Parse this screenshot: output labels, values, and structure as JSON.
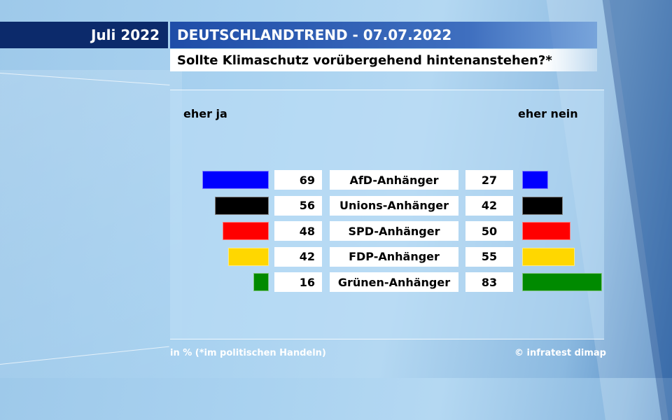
{
  "header": {
    "date": "Juli 2022",
    "title": "DEUTSCHLANDTREND - 07.07.2022",
    "subtitle": "Sollte Klimaschutz vorübergehend hintenanstehen?*"
  },
  "chart_data": {
    "type": "bar",
    "title": "Sollte Klimaschutz vorübergehend hintenanstehen?*",
    "left_label": "eher ja",
    "right_label": "eher nein",
    "unit": "%",
    "categories": [
      "AfD-Anhänger",
      "Unions-Anhänger",
      "SPD-Anhänger",
      "FDP-Anhänger",
      "Grünen-Anhänger"
    ],
    "series": [
      {
        "name": "eher ja",
        "values": [
          69,
          56,
          48,
          42,
          16
        ]
      },
      {
        "name": "eher nein",
        "values": [
          27,
          42,
          50,
          55,
          83
        ]
      }
    ],
    "colors": [
      "#0000ff",
      "#000000",
      "#ff0000",
      "#ffd700",
      "#008a00"
    ],
    "xlim": [
      0,
      100
    ]
  },
  "footer": {
    "note": "in % (*im politischen Handeln)",
    "source": "© infratest dimap"
  }
}
